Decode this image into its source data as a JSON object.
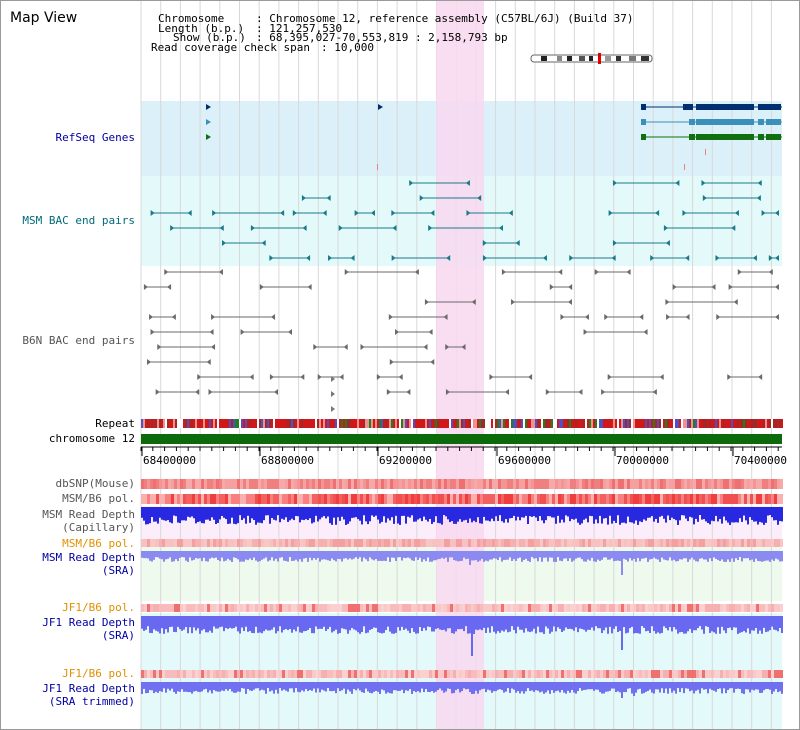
{
  "view_title": "Map View",
  "info": {
    "chromosome_label": "Chromosome",
    "chromosome_value": ": Chromosome 12, reference assembly (C57BL/6J) (Build 37)",
    "length_label": "Length (b.p.)",
    "length_value": ": 121,257,530",
    "show_label": "Show (b.p.)",
    "show_value": ": 68,395,027-70,553,819 : 2,158,793 bp",
    "coverage_label": "Read coverage check span",
    "coverage_value": ": 10,000"
  },
  "tracks": {
    "refseq": "RefSeq Genes",
    "msm_bac": "MSM BAC end pairs",
    "b6n_bac": "B6N BAC end pairs",
    "repeat": "Repeat",
    "chromosome": "chromosome 12",
    "dbsnp": "dbSNP(Mouse)",
    "msm_b6_pol_1": "MSM/B6 pol.",
    "msm_depth_cap_1": "MSM Read Depth",
    "msm_depth_cap_2": "(Capillary)",
    "msm_b6_pol_2": "MSM/B6 pol.",
    "msm_depth_sra_1": "MSM Read Depth",
    "msm_depth_sra_2": "(SRA)",
    "jf1_b6_pol_1": "JF1/B6 pol.",
    "jf1_depth_sra_1": "JF1 Read Depth",
    "jf1_depth_sra_2": "(SRA)",
    "jf1_b6_pol_2": "JF1/B6 pol.",
    "jf1_depth_trim_1": "JF1 Read Depth",
    "jf1_depth_trim_2": "(SRA trimmed)"
  },
  "axis_ticks": [
    "68400000",
    "68800000",
    "69200000",
    "69600000",
    "70000000",
    "70400000"
  ],
  "colors": {
    "refseq_bg": "#dcf0fa",
    "msm_bg": "#e4fafa",
    "highlight": "#f8d8f0",
    "gene_navy": "#003070",
    "gene_teal": "#3a90b8",
    "gene_green": "#107010",
    "chromosome_bar": "#0b6b0b",
    "depth_blue": "#2020e0",
    "depth_light": "#7070f0"
  }
}
